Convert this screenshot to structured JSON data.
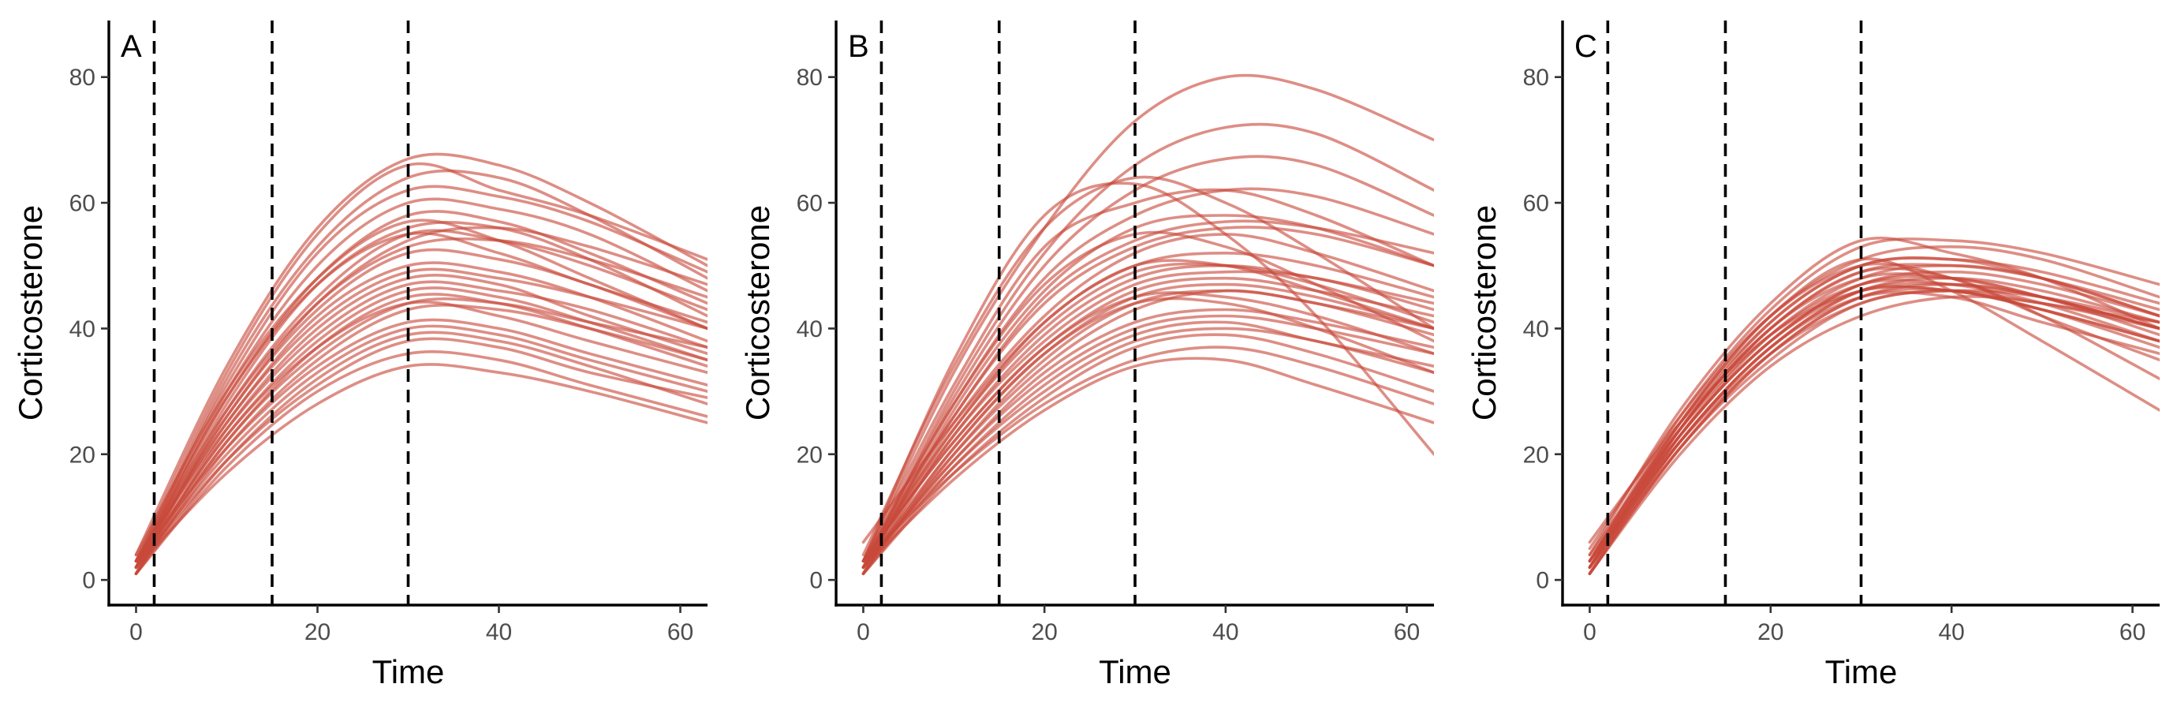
{
  "chart_data": [
    {
      "type": "line",
      "panel_label": "A",
      "xlabel": "Time",
      "ylabel": "Corticosterone",
      "xlim": [
        -3,
        63
      ],
      "ylim": [
        -4,
        89
      ],
      "x_ticks": [
        0,
        20,
        40,
        60
      ],
      "y_ticks": [
        0,
        20,
        40,
        60,
        80
      ],
      "x_tick_labels": [
        "0",
        "20",
        "40",
        "60"
      ],
      "y_tick_labels": [
        "0",
        "20",
        "40",
        "60",
        "80"
      ],
      "vlines": [
        2,
        15,
        30
      ],
      "line_color": "#C8493A",
      "grid": false,
      "x": [
        0,
        10,
        20,
        30,
        40,
        50,
        63
      ],
      "series": [
        {
          "values": [
            3,
            33,
            55,
            66,
            62,
            58,
            51
          ]
        },
        {
          "values": [
            4,
            34,
            56,
            67,
            66,
            60,
            50
          ]
        },
        {
          "values": [
            2,
            32,
            53,
            64,
            64,
            58,
            48
          ]
        },
        {
          "values": [
            3,
            31,
            52,
            62,
            61,
            57,
            49
          ]
        },
        {
          "values": [
            2,
            30,
            50,
            60,
            59,
            55,
            46
          ]
        },
        {
          "values": [
            3,
            29,
            48,
            58,
            57,
            52,
            44
          ]
        },
        {
          "values": [
            2,
            28,
            47,
            56,
            56,
            51,
            42
          ]
        },
        {
          "values": [
            4,
            30,
            48,
            57,
            54,
            48,
            40
          ]
        },
        {
          "values": [
            1,
            27,
            45,
            55,
            54,
            50,
            43
          ]
        },
        {
          "values": [
            3,
            27,
            44,
            53,
            54,
            51,
            45
          ]
        },
        {
          "values": [
            2,
            26,
            43,
            52,
            51,
            47,
            40
          ]
        },
        {
          "values": [
            3,
            25,
            42,
            50,
            49,
            45,
            38
          ]
        },
        {
          "values": [
            2,
            25,
            41,
            49,
            48,
            45,
            40
          ]
        },
        {
          "values": [
            1,
            24,
            40,
            48,
            47,
            42,
            36
          ]
        },
        {
          "values": [
            3,
            24,
            39,
            47,
            46,
            43,
            37
          ]
        },
        {
          "values": [
            2,
            23,
            38,
            46,
            45,
            41,
            35
          ]
        },
        {
          "values": [
            2,
            22,
            37,
            45,
            44,
            40,
            34
          ]
        },
        {
          "values": [
            1,
            22,
            36,
            44,
            44,
            41,
            37
          ]
        },
        {
          "values": [
            3,
            21,
            34,
            41,
            40,
            36,
            31
          ]
        },
        {
          "values": [
            2,
            20,
            33,
            40,
            39,
            35,
            30
          ]
        },
        {
          "values": [
            1,
            19,
            32,
            39,
            38,
            34,
            28
          ]
        },
        {
          "values": [
            2,
            19,
            31,
            38,
            37,
            33,
            29
          ]
        },
        {
          "values": [
            1,
            18,
            30,
            36,
            35,
            31,
            26
          ]
        },
        {
          "values": [
            2,
            17,
            28,
            34,
            33,
            30,
            25
          ]
        },
        {
          "values": [
            2,
            23,
            37,
            44,
            42,
            38,
            33
          ]
        },
        {
          "values": [
            3,
            26,
            44,
            54,
            56,
            53,
            47
          ]
        },
        {
          "values": [
            2,
            29,
            47,
            55,
            52,
            47,
            41
          ]
        },
        {
          "values": [
            1,
            21,
            35,
            43,
            43,
            40,
            35
          ]
        }
      ]
    },
    {
      "type": "line",
      "panel_label": "B",
      "xlabel": "Time",
      "ylabel": "Corticosterone",
      "xlim": [
        -3,
        63
      ],
      "ylim": [
        -4,
        89
      ],
      "x_ticks": [
        0,
        20,
        40,
        60
      ],
      "y_ticks": [
        0,
        20,
        40,
        60,
        80
      ],
      "x_tick_labels": [
        "0",
        "20",
        "40",
        "60"
      ],
      "y_tick_labels": [
        "0",
        "20",
        "40",
        "60",
        "80"
      ],
      "vlines": [
        2,
        15,
        30
      ],
      "line_color": "#C8493A",
      "grid": false,
      "x": [
        0,
        10,
        20,
        30,
        40,
        50,
        63
      ],
      "series": [
        {
          "values": [
            3,
            33,
            56,
            73,
            80,
            78,
            70
          ]
        },
        {
          "values": [
            2,
            30,
            52,
            66,
            72,
            71,
            62
          ]
        },
        {
          "values": [
            3,
            35,
            58,
            63,
            55,
            42,
            20
          ]
        },
        {
          "values": [
            4,
            34,
            56,
            64,
            60,
            52,
            40
          ]
        },
        {
          "values": [
            2,
            29,
            50,
            62,
            67,
            66,
            58
          ]
        },
        {
          "values": [
            3,
            31,
            53,
            60,
            62,
            58,
            50
          ]
        },
        {
          "values": [
            2,
            28,
            48,
            58,
            62,
            61,
            55
          ]
        },
        {
          "values": [
            1,
            27,
            46,
            56,
            58,
            56,
            50
          ]
        },
        {
          "values": [
            3,
            26,
            45,
            54,
            57,
            56,
            52
          ]
        },
        {
          "values": [
            2,
            26,
            44,
            53,
            56,
            55,
            50
          ]
        },
        {
          "values": [
            2,
            25,
            42,
            52,
            55,
            52,
            46
          ]
        },
        {
          "values": [
            3,
            24,
            41,
            50,
            52,
            50,
            45
          ]
        },
        {
          "values": [
            1,
            23,
            39,
            48,
            50,
            48,
            44
          ]
        },
        {
          "values": [
            2,
            23,
            38,
            47,
            49,
            48,
            43
          ]
        },
        {
          "values": [
            3,
            22,
            37,
            46,
            48,
            46,
            42
          ]
        },
        {
          "values": [
            2,
            21,
            36,
            45,
            47,
            45,
            40
          ]
        },
        {
          "values": [
            1,
            20,
            35,
            44,
            46,
            44,
            39
          ]
        },
        {
          "values": [
            2,
            20,
            34,
            43,
            46,
            44,
            40
          ]
        },
        {
          "values": [
            3,
            22,
            37,
            45,
            45,
            42,
            36
          ]
        },
        {
          "values": [
            2,
            19,
            32,
            40,
            42,
            40,
            36
          ]
        },
        {
          "values": [
            1,
            18,
            31,
            39,
            41,
            38,
            34
          ]
        },
        {
          "values": [
            2,
            18,
            30,
            38,
            40,
            38,
            33
          ]
        },
        {
          "values": [
            1,
            17,
            29,
            37,
            39,
            36,
            30
          ]
        },
        {
          "values": [
            3,
            17,
            28,
            35,
            37,
            34,
            28
          ]
        },
        {
          "values": [
            2,
            16,
            27,
            34,
            35,
            31,
            25
          ]
        },
        {
          "values": [
            6,
            25,
            41,
            50,
            50,
            46,
            40
          ]
        },
        {
          "values": [
            2,
            24,
            40,
            49,
            50,
            47,
            41
          ]
        },
        {
          "values": [
            3,
            28,
            47,
            55,
            53,
            47,
            38
          ]
        },
        {
          "values": [
            1,
            21,
            36,
            44,
            44,
            40,
            33
          ]
        },
        {
          "values": [
            2,
            19,
            33,
            41,
            43,
            41,
            37
          ]
        }
      ]
    },
    {
      "type": "line",
      "panel_label": "C",
      "xlabel": "Time",
      "ylabel": "Corticosterone",
      "xlim": [
        -3,
        63
      ],
      "ylim": [
        -4,
        89
      ],
      "x_ticks": [
        0,
        20,
        40,
        60
      ],
      "y_ticks": [
        0,
        20,
        40,
        60,
        80
      ],
      "x_tick_labels": [
        "0",
        "20",
        "40",
        "60"
      ],
      "y_tick_labels": [
        "0",
        "20",
        "40",
        "60",
        "80"
      ],
      "vlines": [
        2,
        15,
        30
      ],
      "line_color": "#C8493A",
      "grid": false,
      "x": [
        0,
        10,
        20,
        30,
        40,
        50,
        63
      ],
      "series": [
        {
          "values": [
            3,
            26,
            43,
            53,
            54,
            52,
            47
          ]
        },
        {
          "values": [
            4,
            27,
            44,
            54,
            52,
            48,
            40
          ]
        },
        {
          "values": [
            2,
            25,
            42,
            51,
            53,
            51,
            45
          ]
        },
        {
          "values": [
            3,
            25,
            41,
            50,
            51,
            49,
            44
          ]
        },
        {
          "values": [
            2,
            24,
            40,
            49,
            50,
            48,
            43
          ]
        },
        {
          "values": [
            1,
            23,
            39,
            48,
            50,
            48,
            42
          ]
        },
        {
          "values": [
            3,
            24,
            40,
            48,
            48,
            45,
            40
          ]
        },
        {
          "values": [
            2,
            23,
            38,
            47,
            49,
            47,
            42
          ]
        },
        {
          "values": [
            1,
            22,
            37,
            46,
            48,
            46,
            41
          ]
        },
        {
          "values": [
            2,
            22,
            37,
            46,
            47,
            45,
            40
          ]
        },
        {
          "values": [
            3,
            23,
            38,
            46,
            46,
            43,
            38
          ]
        },
        {
          "values": [
            2,
            21,
            36,
            45,
            47,
            45,
            40
          ]
        },
        {
          "values": [
            1,
            21,
            35,
            44,
            46,
            45,
            41
          ]
        },
        {
          "values": [
            6,
            25,
            39,
            46,
            46,
            43,
            38
          ]
        },
        {
          "values": [
            5,
            26,
            42,
            50,
            48,
            42,
            35
          ]
        },
        {
          "values": [
            2,
            24,
            40,
            49,
            48,
            42,
            32
          ]
        },
        {
          "values": [
            3,
            25,
            42,
            51,
            46,
            38,
            27
          ]
        },
        {
          "values": [
            1,
            20,
            34,
            42,
            45,
            44,
            40
          ]
        },
        {
          "values": [
            2,
            22,
            37,
            45,
            45,
            41,
            36
          ]
        },
        {
          "values": [
            4,
            24,
            39,
            47,
            47,
            44,
            38
          ]
        },
        {
          "values": [
            2,
            23,
            38,
            47,
            48,
            45,
            39
          ]
        },
        {
          "values": [
            3,
            22,
            36,
            44,
            46,
            44,
            41
          ]
        },
        {
          "values": [
            1,
            21,
            36,
            45,
            46,
            43,
            37
          ]
        },
        {
          "values": [
            2,
            24,
            41,
            50,
            51,
            48,
            42
          ]
        }
      ]
    }
  ]
}
